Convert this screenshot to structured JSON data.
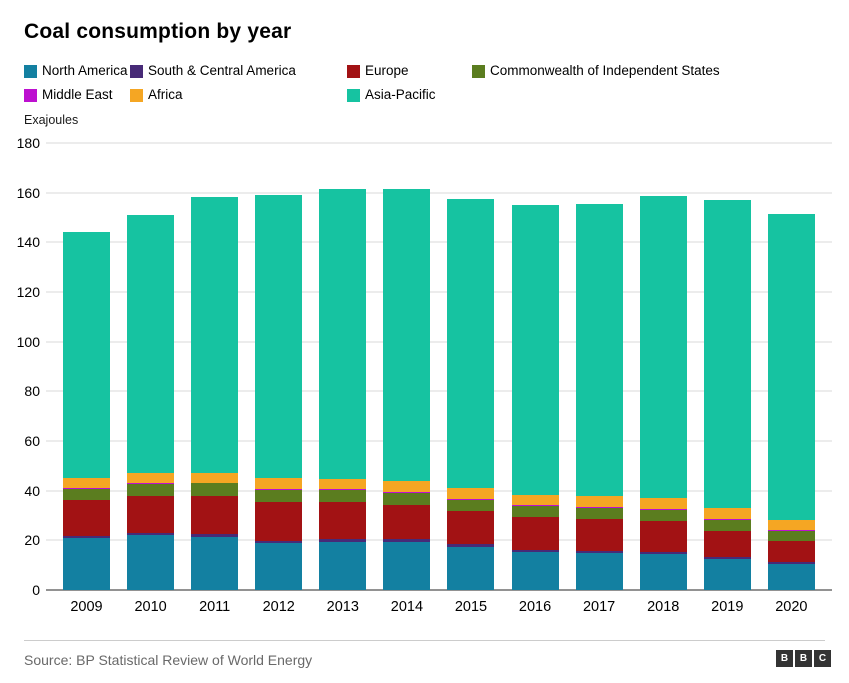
{
  "title": "Coal consumption by year",
  "source": "Source: BP Statistical Review of World Energy",
  "logo": {
    "letters": [
      "B",
      "B",
      "C"
    ]
  },
  "chart_data": {
    "type": "stacked-bar",
    "title": "Coal consumption by year",
    "xlabel": "",
    "ylabel": "Exajoules",
    "ylim": [
      0,
      180
    ],
    "yticks": [
      0,
      20,
      40,
      60,
      80,
      100,
      120,
      140,
      160,
      180
    ],
    "grid": true,
    "legend_position": "top",
    "x": [
      "2009",
      "2010",
      "2011",
      "2012",
      "2013",
      "2014",
      "2015",
      "2016",
      "2017",
      "2018",
      "2019",
      "2020"
    ],
    "series": [
      {
        "name": "North America",
        "color": "#1380a1",
        "values": [
          21,
          22,
          21.5,
          19,
          19.5,
          19.5,
          17.5,
          15.5,
          15,
          14.5,
          12.5,
          10.5
        ]
      },
      {
        "name": "South & Central America",
        "color": "#472a77",
        "values": [
          0.8,
          0.9,
          0.9,
          0.9,
          0.9,
          0.9,
          0.9,
          0.8,
          0.8,
          0.8,
          0.8,
          0.7
        ]
      },
      {
        "name": "Europe",
        "color": "#a21214",
        "values": [
          14.5,
          15,
          15.5,
          15.5,
          15,
          14,
          13.5,
          13,
          13,
          12.5,
          10.5,
          8.5
        ]
      },
      {
        "name": "Commonwealth of Independent States",
        "color": "#5b7d1f",
        "values": [
          4.5,
          4.7,
          5,
          5,
          4.8,
          4.7,
          4.5,
          4.4,
          4.4,
          4.6,
          4.5,
          4.2
        ]
      },
      {
        "name": "Middle East",
        "color": "#bd10d0",
        "values": [
          0.4,
          0.4,
          0.4,
          0.4,
          0.4,
          0.4,
          0.4,
          0.4,
          0.4,
          0.4,
          0.4,
          0.4
        ]
      },
      {
        "name": "Africa",
        "color": "#f5a623",
        "values": [
          4,
          4,
          4,
          4.2,
          4.3,
          4.4,
          4.2,
          4.3,
          4.3,
          4.3,
          4.3,
          4
        ]
      },
      {
        "name": "Asia-Pacific",
        "color": "#16c3a1",
        "values": [
          99,
          104,
          111,
          114,
          116.5,
          117.5,
          116.5,
          116.5,
          117.5,
          121.5,
          124,
          123
        ]
      }
    ]
  }
}
